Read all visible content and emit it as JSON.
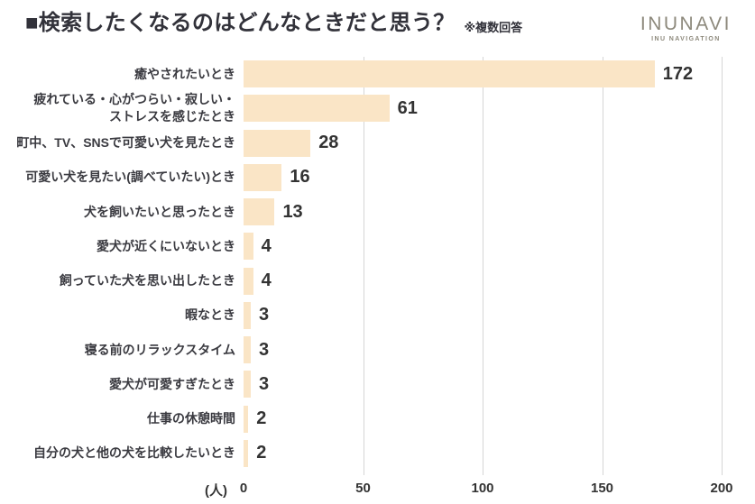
{
  "title": {
    "text": "■検索したくなるのはどんなときだと思う？",
    "note": "※複数回答"
  },
  "logo": {
    "name": "INUNAVI",
    "tagline": "INU NAVIGATION"
  },
  "chart_data": {
    "type": "bar",
    "orientation": "horizontal",
    "title": "検索したくなるのはどんなときだと思う？（複数回答）",
    "categories": [
      "癒やされたいとき",
      "疲れている・心がつらい・寂しい・\nストレスを感じたとき",
      "町中、TV、SNSで可愛い犬を見たとき",
      "可愛い犬を見たい(調べていたい)とき",
      "犬を飼いたいと思ったとき",
      "愛犬が近くにいないとき",
      "飼っていた犬を思い出したとき",
      "暇なとき",
      "寝る前のリラックスタイム",
      "愛犬が可愛すぎたとき",
      "仕事の休憩時間",
      "自分の犬と他の犬を比較したいとき"
    ],
    "values": [
      172,
      61,
      28,
      16,
      13,
      4,
      4,
      3,
      3,
      3,
      2,
      2
    ],
    "xlabel": "(人)",
    "xticks": [
      0,
      50,
      100,
      150,
      200
    ],
    "xlim": [
      0,
      200
    ],
    "grid": true,
    "legend": false,
    "bar_color": "#FAE5C6",
    "value_label_color": "#333333",
    "gridline_color": "#D6D6D6"
  }
}
